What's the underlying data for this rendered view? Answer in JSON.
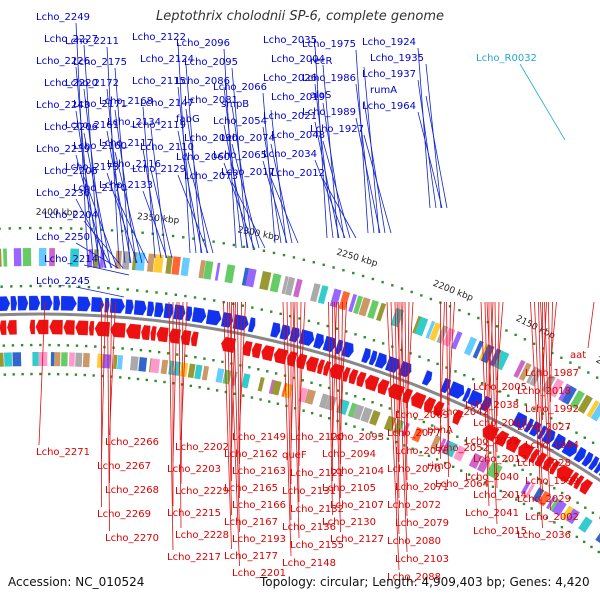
{
  "title": "Leptothrix cholodnii SP-6, complete genome",
  "accession": "Accession: NC_010524",
  "summary": "Topology: circular; Length: 4,909,403 bp; Genes: 4,420",
  "colors": {
    "forward_label": "#0000cc",
    "reverse_label": "#dd0000",
    "rna_label": "#22aacc",
    "backbone": "#888888"
  },
  "kbp_ticks": [
    "2100 kbp",
    "2150 kbp",
    "2200 kbp",
    "2250 kbp",
    "2300 kbp",
    "2350 kbp",
    "2400 kbp",
    "2450 kbp"
  ],
  "forward_genes": [
    "Lcho_2249",
    "Lcho_2227",
    "Lcho_2226",
    "Lcho_2220",
    "Lcho_2243",
    "Lcho_2206",
    "Lcho_2239",
    "Lcho_2205",
    "Lcho_2236",
    "Lcho_2204",
    "Lcho_2250",
    "Lcho_2214",
    "Lcho_2245",
    "Lcho_2211",
    "Lcho_2175",
    "Lcho_2172",
    "Lcho_2171",
    "Lcho_2161",
    "Lcho_2160",
    "Lcho_2173",
    "Lcho_2170",
    "Lcho_2168",
    "Lcho_2134",
    "Lcho_2117",
    "Lcho_2116",
    "Lcho_2133",
    "Lcho_2122",
    "Lcho_2124",
    "Lcho_2115",
    "Lcho_2147",
    "Lcho_2119",
    "Lcho_2110",
    "Lcho_2129",
    "Lcho_2096",
    "Lcho_2095",
    "Lcho_2086",
    "Lcho_2081",
    "fabG",
    "Lcho_2090",
    "Lcho_2060",
    "Lcho_2073",
    "Lcho_2066",
    "smpB",
    "Lcho_2054",
    "Lcho_2074",
    "Lcho_2065",
    "Lcho_2017",
    "Lcho_2035",
    "Lcho_2004",
    "Lcho_2026",
    "Lcho_2019",
    "Lcho_2021",
    "Lcho_2048",
    "Lcho_2034",
    "Lcho_2012",
    "Lcho_1975",
    "recR",
    "Lcho_1986",
    "alaS",
    "Lcho_1989",
    "Lcho_1927",
    "Lcho_1924",
    "Lcho_1935",
    "Lcho_1937",
    "rumA",
    "Lcho_1964"
  ],
  "rna_genes": [
    "Lcho_R0032"
  ],
  "reverse_genes": [
    "aat",
    "Lcho_1987",
    "Lcho_2018",
    "Lcho_1992",
    "Lcho_2027",
    "Lcho_1994",
    "Lcho_2028",
    "Lcho_1999",
    "Lcho_2029",
    "Lcho_2002",
    "Lcho_2036",
    "Lcho_2005",
    "Lcho_2038",
    "Lcho_2007",
    "Lcho_2039",
    "Lcho_2013",
    "Lcho_2040",
    "Lcho_2014",
    "Lcho_2041",
    "Lcho_2015",
    "Lcho_2042",
    "phhA",
    "Lcho_2052",
    "rimO",
    "Lcho_2064",
    "Lcho_2069",
    "Lcho_2077",
    "Lcho_2078",
    "Lcho_2070",
    "Lcho_2071",
    "Lcho_2072",
    "Lcho_2079",
    "Lcho_2080",
    "Lcho_2103",
    "Lcho_2088",
    "Lcho_2093",
    "Lcho_2094",
    "Lcho_2104",
    "Lcho_2105",
    "Lcho_2107",
    "Lcho_2130",
    "Lcho_2127",
    "Lcho_2120",
    "queF",
    "Lcho_2121",
    "Lcho_2131",
    "Lcho_2132",
    "Lcho_2136",
    "Lcho_2155",
    "Lcho_2148",
    "Lcho_2149",
    "Lcho_2162",
    "Lcho_2163",
    "Lcho_2165",
    "Lcho_2166",
    "Lcho_2167",
    "Lcho_2193",
    "Lcho_2177",
    "Lcho_2201",
    "Lcho_2202",
    "Lcho_2203",
    "Lcho_2229",
    "Lcho_2215",
    "Lcho_2228",
    "Lcho_2217",
    "Lcho_2266",
    "Lcho_2267",
    "Lcho_2268",
    "Lcho_2269",
    "Lcho_2270",
    "Lcho_2271"
  ]
}
